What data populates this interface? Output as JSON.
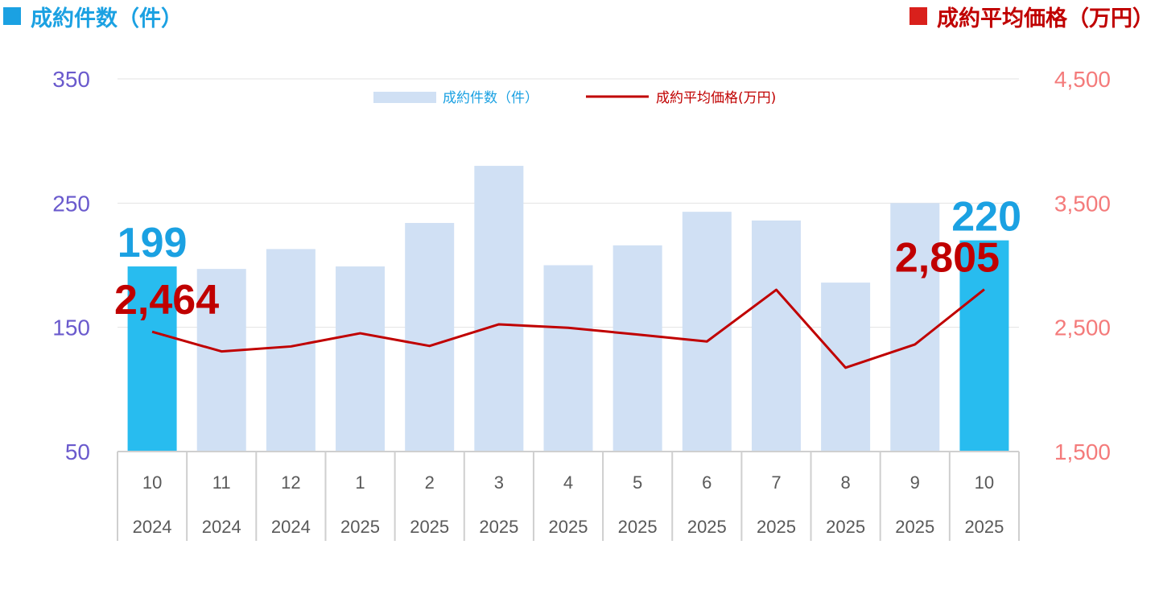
{
  "header": {
    "left_title": "成約件数（件）",
    "right_title": "成約平均価格（万円）",
    "left_color": "#1ba1e2",
    "right_color": "#c00000"
  },
  "chart_data": {
    "type": "bar",
    "categories": [
      {
        "month": "10",
        "year": "2024"
      },
      {
        "month": "11",
        "year": "2024"
      },
      {
        "month": "12",
        "year": "2024"
      },
      {
        "month": "1",
        "year": "2025"
      },
      {
        "month": "2",
        "year": "2025"
      },
      {
        "month": "3",
        "year": "2025"
      },
      {
        "month": "4",
        "year": "2025"
      },
      {
        "month": "5",
        "year": "2025"
      },
      {
        "month": "6",
        "year": "2025"
      },
      {
        "month": "7",
        "year": "2025"
      },
      {
        "month": "8",
        "year": "2025"
      },
      {
        "month": "9",
        "year": "2025"
      },
      {
        "month": "10",
        "year": "2025"
      }
    ],
    "series": [
      {
        "name": "成約件数（件）",
        "type": "bar",
        "axis": "left",
        "values": [
          199,
          197,
          213,
          199,
          234,
          280,
          200,
          216,
          243,
          236,
          186,
          250,
          220
        ],
        "highlight": [
          0,
          12
        ],
        "color": "#d0e0f4",
        "highlight_color": "#28bcef"
      },
      {
        "name": "成約平均価格(万円)",
        "type": "line",
        "axis": "right",
        "values": [
          2464,
          2306,
          2346,
          2452,
          2350,
          2524,
          2496,
          2442,
          2386,
          2802,
          2175,
          2362,
          2805
        ],
        "color": "#c00000"
      }
    ],
    "data_labels": [
      {
        "series": 0,
        "index": 0,
        "text": "199"
      },
      {
        "series": 0,
        "index": 12,
        "text": "220"
      },
      {
        "series": 1,
        "index": 0,
        "text": "2,464"
      },
      {
        "series": 1,
        "index": 12,
        "text": "2,805"
      }
    ],
    "y_left": {
      "ylim": [
        50,
        350
      ],
      "ticks": [
        "50",
        "150",
        "250",
        "350"
      ],
      "tick_values": [
        50,
        150,
        250,
        350
      ],
      "color": "#6a5acd"
    },
    "y_right": {
      "ylim": [
        1500,
        4500
      ],
      "ticks": [
        "1,500",
        "2,500",
        "3,500",
        "4,500"
      ],
      "tick_values": [
        1500,
        2500,
        3500,
        4500
      ],
      "color": "#f47b7b"
    },
    "grid": true,
    "legend": "top-center"
  }
}
